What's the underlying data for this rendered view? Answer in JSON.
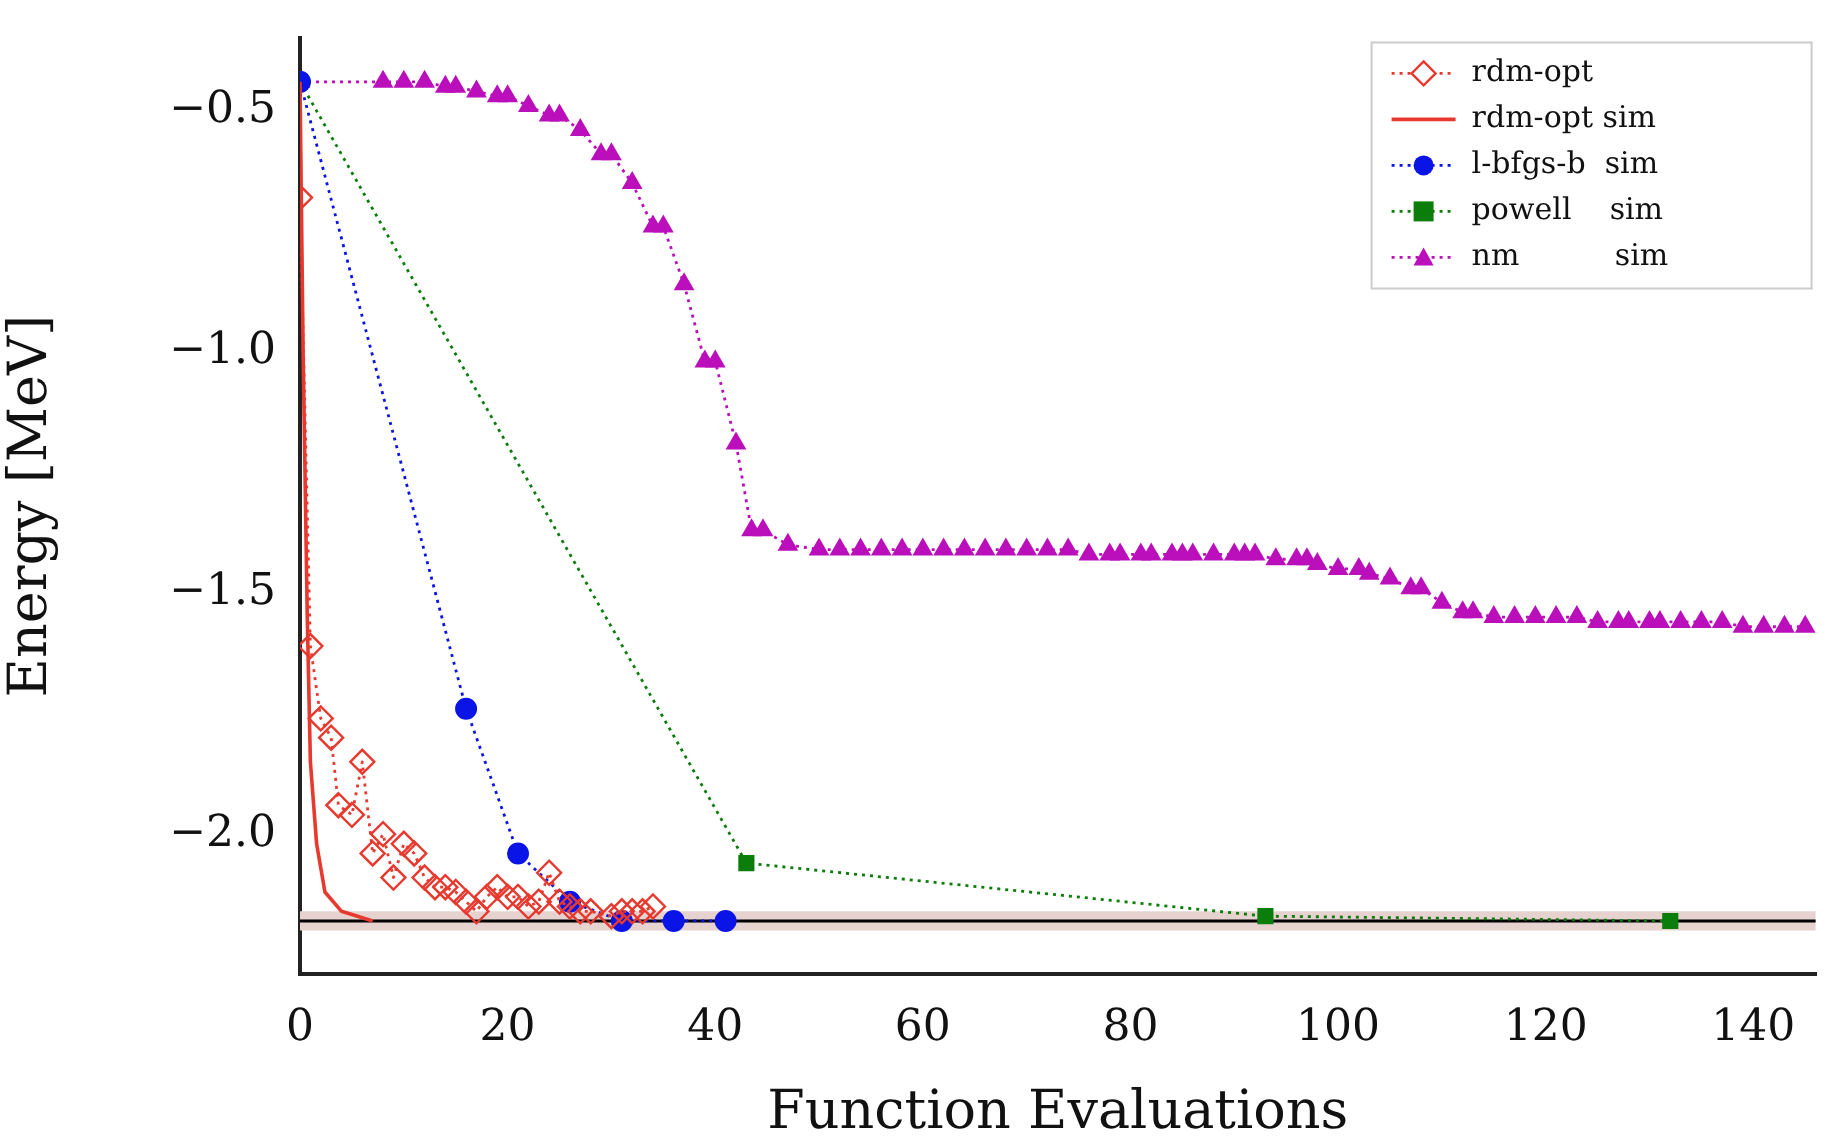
{
  "chart_data": {
    "type": "line",
    "xlabel": "Function Evaluations",
    "ylabel": "Energy [MeV]",
    "xlim": [
      0,
      146
    ],
    "xticks": [
      0,
      20,
      40,
      60,
      80,
      100,
      120,
      140
    ],
    "ylim": [
      -2.29,
      -0.35
    ],
    "yticks": [
      {
        "value": -0.5,
        "label": "−0.5"
      },
      {
        "value": -1.0,
        "label": "−1.0"
      },
      {
        "value": -1.5,
        "label": "−1.5"
      },
      {
        "value": -2.0,
        "label": "−2.0"
      }
    ],
    "grid": false,
    "legend": "top right",
    "ref_lines": [
      {
        "axis": "y",
        "value": -2.18,
        "color": "#000000"
      }
    ],
    "bands": [
      {
        "axis": "y",
        "from": -2.2,
        "to": -2.16,
        "color": "#e6d3d0"
      }
    ],
    "series": [
      {
        "name": "rdm-opt",
        "color": "#e8392f",
        "marker": "diamond",
        "line_style": "dotted",
        "x": [
          0,
          1,
          2,
          3,
          3.7,
          5,
          6,
          7,
          8,
          9,
          10,
          11,
          12,
          13,
          14,
          15,
          16,
          17,
          18,
          19,
          20,
          21,
          22,
          23,
          24,
          25,
          26,
          27,
          28,
          30,
          31,
          32,
          33,
          34
        ],
        "values": [
          -0.68,
          -1.61,
          -1.76,
          -1.8,
          -1.94,
          -1.96,
          -1.85,
          -2.04,
          -2.0,
          -2.09,
          -2.02,
          -2.04,
          -2.09,
          -2.11,
          -2.11,
          -2.12,
          -2.14,
          -2.16,
          -2.13,
          -2.11,
          -2.13,
          -2.13,
          -2.15,
          -2.14,
          -2.08,
          -2.14,
          -2.15,
          -2.16,
          -2.16,
          -2.17,
          -2.16,
          -2.16,
          -2.16,
          -2.15
        ]
      },
      {
        "name": "rdm-opt sim",
        "color": "#e8392f",
        "marker": "none",
        "line_style": "solid",
        "x": [
          0,
          0.3,
          0.7,
          1,
          1.6,
          2.4,
          4,
          7
        ],
        "values": [
          -0.44,
          -1.0,
          -1.55,
          -1.85,
          -2.02,
          -2.12,
          -2.16,
          -2.18
        ]
      },
      {
        "name": "l-bfgs-b  sim",
        "color": "#0a14e6",
        "marker": "circle",
        "line_style": "dotted",
        "x": [
          0,
          16,
          21,
          26,
          31,
          36,
          41
        ],
        "values": [
          -0.44,
          -1.74,
          -2.04,
          -2.14,
          -2.18,
          -2.18,
          -2.18
        ]
      },
      {
        "name": "powell    sim",
        "color": "#0b7d0b",
        "marker": "square",
        "line_style": "dotted",
        "x": [
          0,
          43,
          93,
          132
        ],
        "values": [
          -0.44,
          -2.06,
          -2.17,
          -2.18
        ]
      },
      {
        "name": "nm          sim",
        "color": "#bb0fbb",
        "marker": "triangle",
        "line_style": "dotted",
        "x": [
          0,
          8,
          10,
          12,
          14,
          15,
          17,
          19,
          20,
          22,
          24,
          25,
          27,
          29,
          30,
          32,
          34,
          35,
          37,
          39,
          40,
          42,
          43.5,
          44.6,
          47,
          50,
          52,
          54,
          56,
          58,
          60,
          62,
          64,
          66,
          68,
          70,
          72,
          74,
          76,
          78,
          79,
          81,
          82,
          84,
          85,
          86,
          88,
          90,
          91,
          92,
          94,
          96,
          97,
          98,
          100,
          102,
          103,
          105,
          107,
          108,
          110,
          112,
          113,
          115,
          117,
          119,
          121,
          123,
          125,
          127,
          128,
          130,
          131,
          133,
          135,
          137,
          139,
          141,
          143,
          145
        ],
        "values": [
          -0.44,
          -0.44,
          -0.44,
          -0.44,
          -0.45,
          -0.45,
          -0.46,
          -0.47,
          -0.47,
          -0.49,
          -0.51,
          -0.51,
          -0.54,
          -0.59,
          -0.59,
          -0.65,
          -0.74,
          -0.74,
          -0.86,
          -1.02,
          -1.02,
          -1.19,
          -1.37,
          -1.37,
          -1.4,
          -1.41,
          -1.41,
          -1.41,
          -1.41,
          -1.41,
          -1.41,
          -1.41,
          -1.41,
          -1.41,
          -1.41,
          -1.41,
          -1.41,
          -1.41,
          -1.42,
          -1.42,
          -1.42,
          -1.42,
          -1.42,
          -1.42,
          -1.42,
          -1.42,
          -1.42,
          -1.42,
          -1.42,
          -1.42,
          -1.43,
          -1.43,
          -1.43,
          -1.44,
          -1.45,
          -1.45,
          -1.46,
          -1.47,
          -1.49,
          -1.49,
          -1.52,
          -1.54,
          -1.54,
          -1.55,
          -1.55,
          -1.55,
          -1.55,
          -1.55,
          -1.56,
          -1.56,
          -1.56,
          -1.56,
          -1.56,
          -1.56,
          -1.56,
          -1.56,
          -1.57,
          -1.57,
          -1.57,
          -1.57
        ]
      }
    ]
  }
}
